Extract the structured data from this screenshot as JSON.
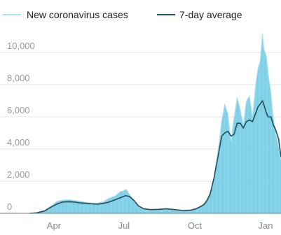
{
  "chart_data": {
    "type": "area",
    "legend": {
      "placement": "top-left",
      "items": [
        {
          "label": "New coronavirus cases",
          "color": "#aee3f0",
          "style": "bars"
        },
        {
          "label": "7-day average",
          "color": "#1f4f5c",
          "style": "line"
        }
      ]
    },
    "y_ticks": [
      {
        "value": 0,
        "label": "0"
      },
      {
        "value": 2000,
        "label": "2,000"
      },
      {
        "value": 4000,
        "label": "4,000"
      },
      {
        "value": 6000,
        "label": "6,000"
      },
      {
        "value": 8000,
        "label": "8,000"
      },
      {
        "value": 10000,
        "label": "10,000"
      }
    ],
    "x_ticks": [
      {
        "date": "2020-04-01",
        "label": "Apr"
      },
      {
        "date": "2020-07-01",
        "label": "Jul"
      },
      {
        "date": "2020-10-01",
        "label": "Oct"
      },
      {
        "date": "2021-01-01",
        "label": "Jan"
      }
    ],
    "ylim": [
      0,
      11000
    ],
    "xlim": [
      "2020-01-22",
      "2021-01-21"
    ],
    "grid": {
      "y": true,
      "x": false
    },
    "colors": {
      "bars": "#b9e7f2",
      "bars_fill": "#7fd0e6",
      "average_line": "#1f4f5c",
      "baseline": "#777777"
    },
    "series": [
      {
        "name": "New coronavirus cases",
        "kind": "daily",
        "x": [
          "2020-03-01",
          "2020-03-10",
          "2020-03-20",
          "2020-03-28",
          "2020-04-05",
          "2020-04-12",
          "2020-04-20",
          "2020-04-28",
          "2020-05-05",
          "2020-05-12",
          "2020-05-20",
          "2020-05-28",
          "2020-06-05",
          "2020-06-12",
          "2020-06-20",
          "2020-06-26",
          "2020-06-30",
          "2020-07-04",
          "2020-07-08",
          "2020-07-14",
          "2020-07-20",
          "2020-07-27",
          "2020-08-05",
          "2020-08-15",
          "2020-08-25",
          "2020-09-05",
          "2020-09-15",
          "2020-09-25",
          "2020-10-02",
          "2020-10-08",
          "2020-10-13",
          "2020-10-17",
          "2020-10-21",
          "2020-10-26",
          "2020-10-31",
          "2020-11-05",
          "2020-11-09",
          "2020-11-13",
          "2020-11-17",
          "2020-11-21",
          "2020-11-25",
          "2020-11-29",
          "2020-12-03",
          "2020-12-07",
          "2020-12-11",
          "2020-12-15",
          "2020-12-19",
          "2020-12-22",
          "2020-12-25",
          "2020-12-28",
          "2020-12-30",
          "2021-01-02",
          "2021-01-05",
          "2021-01-08",
          "2021-01-11",
          "2021-01-14",
          "2021-01-18",
          "2021-01-21"
        ],
        "y": [
          0,
          50,
          200,
          450,
          750,
          820,
          850,
          800,
          760,
          700,
          650,
          650,
          750,
          950,
          1100,
          1350,
          1400,
          1500,
          1200,
          800,
          450,
          250,
          200,
          250,
          300,
          200,
          150,
          200,
          300,
          450,
          600,
          900,
          1300,
          2200,
          3800,
          5800,
          6800,
          6200,
          4500,
          6000,
          7200,
          6500,
          5500,
          7000,
          7300,
          6000,
          8000,
          9000,
          9500,
          11200,
          10200,
          9800,
          8500,
          7500,
          6000,
          5000,
          4200,
          3300
        ]
      },
      {
        "name": "7-day average",
        "kind": "average",
        "x": [
          "2020-03-01",
          "2020-03-10",
          "2020-03-20",
          "2020-03-28",
          "2020-04-05",
          "2020-04-12",
          "2020-04-20",
          "2020-04-28",
          "2020-05-05",
          "2020-05-12",
          "2020-05-20",
          "2020-05-28",
          "2020-06-05",
          "2020-06-12",
          "2020-06-20",
          "2020-06-28",
          "2020-07-03",
          "2020-07-08",
          "2020-07-14",
          "2020-07-20",
          "2020-07-27",
          "2020-08-05",
          "2020-08-15",
          "2020-08-25",
          "2020-09-05",
          "2020-09-15",
          "2020-09-25",
          "2020-10-02",
          "2020-10-08",
          "2020-10-13",
          "2020-10-17",
          "2020-10-21",
          "2020-10-26",
          "2020-10-31",
          "2020-11-05",
          "2020-11-09",
          "2020-11-13",
          "2020-11-17",
          "2020-11-21",
          "2020-11-25",
          "2020-11-29",
          "2020-12-03",
          "2020-12-07",
          "2020-12-11",
          "2020-12-15",
          "2020-12-19",
          "2020-12-22",
          "2020-12-25",
          "2020-12-28",
          "2021-01-01",
          "2021-01-04",
          "2021-01-08",
          "2021-01-11",
          "2021-01-14",
          "2021-01-18",
          "2021-01-21"
        ],
        "y": [
          0,
          30,
          150,
          380,
          580,
          700,
          720,
          700,
          650,
          620,
          590,
          570,
          620,
          700,
          850,
          1000,
          1100,
          1050,
          800,
          450,
          280,
          230,
          250,
          280,
          230,
          180,
          190,
          270,
          400,
          550,
          800,
          1200,
          2200,
          3500,
          4800,
          5000,
          5100,
          4800,
          4900,
          5600,
          5600,
          5300,
          5700,
          5800,
          5700,
          6200,
          6600,
          6800,
          7000,
          6400,
          6000,
          6000,
          5500,
          5200,
          4600,
          3500
        ]
      }
    ]
  }
}
